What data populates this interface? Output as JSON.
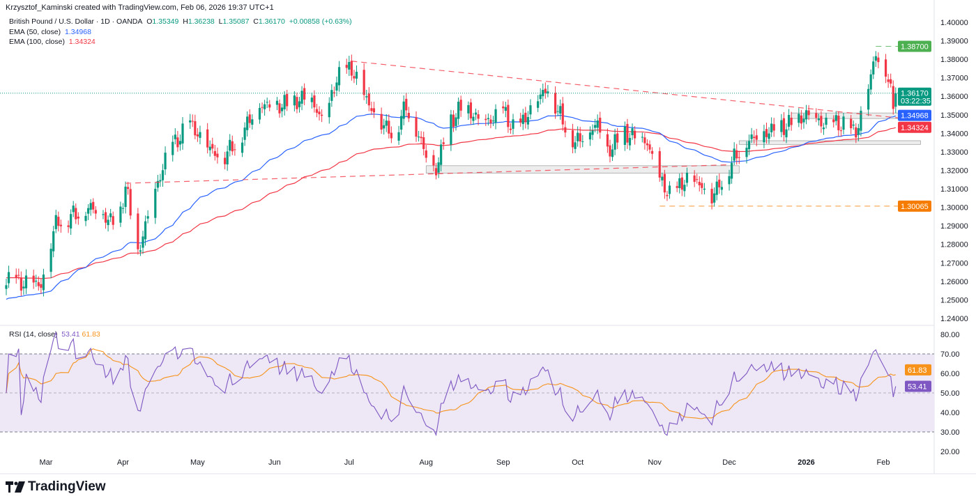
{
  "header": {
    "credit": "Krzysztof_Kaminski created with TradingView.com, Feb 06, 2026 19:37 UTC+1"
  },
  "legend": {
    "symbol": "British Pound / U.S. Dollar · 1D · OANDA",
    "o_label": "O",
    "o": "1.35349",
    "h_label": "H",
    "h": "1.36238",
    "l_label": "L",
    "l": "1.35087",
    "c_label": "C",
    "c": "1.36170",
    "change": "+0.00858 (+0.63%)",
    "ema50_label": "EMA (50, close)",
    "ema50": "1.34968",
    "ema100_label": "EMA (100, close)",
    "ema100": "1.34324"
  },
  "rsi_legend": {
    "label": "RSI (14, close)",
    "rsi": "53.41",
    "ma": "61.83"
  },
  "colors": {
    "up": "#089981",
    "down": "#f23645",
    "ema50": "#2962ff",
    "ema100": "#f23645",
    "rsi": "#7e57c2",
    "rsi_ma": "#f7931a",
    "band": "#ede7f6"
  },
  "chart_data": {
    "type": "candlestick",
    "title": "British Pound / U.S. Dollar · 1D · OANDA",
    "ylim": [
      1.235,
      1.405
    ],
    "y_ticks": [
      "1.40000",
      "1.39000",
      "1.38000",
      "1.37000",
      "1.36000",
      "1.35000",
      "1.34000",
      "1.33000",
      "1.32000",
      "1.31000",
      "1.30000",
      "1.29000",
      "1.28000",
      "1.27000",
      "1.26000",
      "1.25000",
      "1.24000"
    ],
    "x_ticks": [
      {
        "date": "2025-03-01",
        "label": "Mar"
      },
      {
        "date": "2025-04-01",
        "label": "Apr"
      },
      {
        "date": "2025-05-01",
        "label": "May"
      },
      {
        "date": "2025-06-01",
        "label": "Jun"
      },
      {
        "date": "2025-07-01",
        "label": "Jul"
      },
      {
        "date": "2025-08-01",
        "label": "Aug"
      },
      {
        "date": "2025-09-01",
        "label": "Sep"
      },
      {
        "date": "2025-10-01",
        "label": "Oct"
      },
      {
        "date": "2025-11-01",
        "label": "Nov"
      },
      {
        "date": "2025-12-01",
        "label": "Dec"
      },
      {
        "date": "2026-01-01",
        "label": "2026"
      },
      {
        "date": "2026-02-01",
        "label": "Feb"
      }
    ],
    "close_keypoints": [
      [
        "2025-02-13",
        1.26
      ],
      [
        "2025-02-27",
        1.258
      ],
      [
        "2025-03-05",
        1.292
      ],
      [
        "2025-03-19",
        1.3
      ],
      [
        "2025-03-30",
        1.29
      ],
      [
        "2025-04-02",
        1.312
      ],
      [
        "2025-04-07",
        1.275
      ],
      [
        "2025-04-12",
        1.3
      ],
      [
        "2025-04-19",
        1.33
      ],
      [
        "2025-04-28",
        1.345
      ],
      [
        "2025-05-07",
        1.33
      ],
      [
        "2025-05-12",
        1.328
      ],
      [
        "2025-05-19",
        1.34
      ],
      [
        "2025-05-25",
        1.355
      ],
      [
        "2025-06-04",
        1.355
      ],
      [
        "2025-06-15",
        1.36
      ],
      [
        "2025-06-21",
        1.345
      ],
      [
        "2025-06-26",
        1.37
      ],
      [
        "2025-07-02",
        1.375
      ],
      [
        "2025-07-07",
        1.36
      ],
      [
        "2025-07-14",
        1.345
      ],
      [
        "2025-07-19",
        1.34
      ],
      [
        "2025-07-24",
        1.355
      ],
      [
        "2025-08-02",
        1.325
      ],
      [
        "2025-08-05",
        1.32
      ],
      [
        "2025-08-10",
        1.345
      ],
      [
        "2025-08-16",
        1.355
      ],
      [
        "2025-08-24",
        1.345
      ],
      [
        "2025-09-01",
        1.352
      ],
      [
        "2025-09-06",
        1.34
      ],
      [
        "2025-09-13",
        1.355
      ],
      [
        "2025-09-19",
        1.365
      ],
      [
        "2025-09-23",
        1.352
      ],
      [
        "2025-09-30",
        1.335
      ],
      [
        "2025-10-09",
        1.345
      ],
      [
        "2025-10-13",
        1.33
      ],
      [
        "2025-10-20",
        1.34
      ],
      [
        "2025-10-29",
        1.335
      ],
      [
        "2025-11-03",
        1.315
      ],
      [
        "2025-11-08",
        1.305
      ],
      [
        "2025-11-13",
        1.315
      ],
      [
        "2025-11-20",
        1.312
      ],
      [
        "2025-11-24",
        1.305
      ],
      [
        "2025-11-30",
        1.32
      ],
      [
        "2025-12-07",
        1.335
      ],
      [
        "2025-12-15",
        1.34
      ],
      [
        "2025-12-26",
        1.345
      ],
      [
        "2026-01-01",
        1.35
      ],
      [
        "2026-01-08",
        1.345
      ],
      [
        "2026-01-15",
        1.345
      ],
      [
        "2026-01-21",
        1.34
      ],
      [
        "2026-01-26",
        1.365
      ],
      [
        "2026-01-29",
        1.383
      ],
      [
        "2026-02-02",
        1.375
      ],
      [
        "2026-02-05",
        1.355
      ],
      [
        "2026-02-06",
        1.3617
      ]
    ],
    "levels": [
      {
        "price": 1.387,
        "label": "1.38700",
        "color": "#4caf50"
      },
      {
        "price": 1.30065,
        "label": "1.30065",
        "color": "#f57c00"
      }
    ],
    "price_labels": [
      {
        "label": "1.36170",
        "sub": "03:22:35",
        "color": "#089981",
        "price": 1.3617
      },
      {
        "label": "1.34968",
        "color": "#2962ff",
        "price": 1.34968
      },
      {
        "label": "1.34324",
        "color": "#f23645",
        "price": 1.34324
      }
    ],
    "trendlines": [
      [
        [
          "2025-07-02",
          1.379
        ],
        [
          "2026-02-13",
          1.3475
        ]
      ],
      [
        [
          "2025-04-02",
          1.313
        ],
        [
          "2025-12-01",
          1.323
        ]
      ]
    ],
    "zones": [
      {
        "from": "2025-08-01",
        "to": "2025-12-05",
        "low": 1.3185,
        "high": 1.3225
      },
      {
        "from": "2025-12-05",
        "to": "2026-02-16",
        "low": 1.334,
        "high": 1.336
      },
      {
        "from": "2025-12-26",
        "to": "2026-02-18",
        "low": 1.348,
        "high": 1.351
      }
    ],
    "rsi": {
      "ylim": [
        15,
        85
      ],
      "ticks": [
        "80.00",
        "70.00",
        "60.00",
        "50.00",
        "40.00",
        "30.00",
        "20.00"
      ],
      "bands": [
        30,
        50,
        70
      ],
      "last": 53.41,
      "ma_last": 61.83
    }
  },
  "branding": {
    "logo": "TradingView"
  }
}
